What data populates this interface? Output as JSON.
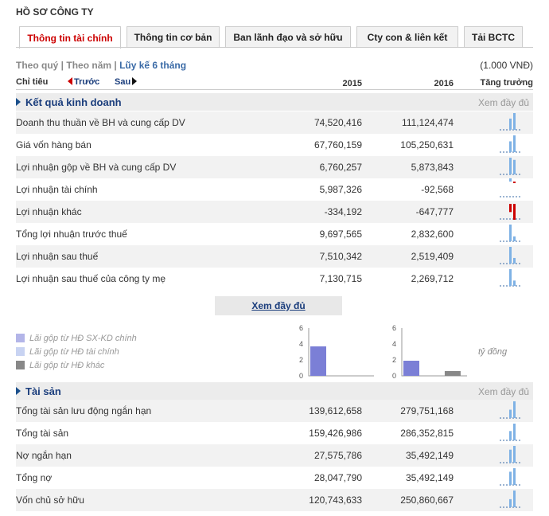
{
  "title": "HỒ SƠ CÔNG TY",
  "tabs": [
    "Thông tin tài chính",
    "Thông tin cơ bản",
    "Ban lãnh đạo và sở hữu",
    "Cty con & liên kết",
    "Tải BCTC"
  ],
  "period": {
    "quarter": "Theo quý",
    "sep1": " | ",
    "year": "Theo năm",
    "sep2": " | ",
    "cumulative": "Lũy kế 6 tháng"
  },
  "unit": "(1.000 VNĐ)",
  "columns": {
    "label": "Chỉ tiêu",
    "prev": "Trước",
    "next": "Sau",
    "year1": "2015",
    "year2": "2016",
    "growth": "Tăng trưởng"
  },
  "colors": {
    "accent_red": "#cc0000",
    "link_blue": "#1a3d7c",
    "bar_blue": "#7fb2e5",
    "bar_red": "#cc0000"
  },
  "section1": {
    "title": "Kết quả kinh doanh",
    "more": "Xem đầy đủ",
    "rows": [
      {
        "name": "Doanh thu thuần về BH và cung cấp DV",
        "v2015": "74,520,416",
        "v2016": "111,124,474"
      },
      {
        "name": "Giá vốn hàng bán",
        "v2015": "67,760,159",
        "v2016": "105,250,631"
      },
      {
        "name": "Lợi nhuận gộp về BH và cung cấp DV",
        "v2015": "6,760,257",
        "v2016": "5,873,843"
      },
      {
        "name": "Lợi nhuận tài chính",
        "v2015": "5,987,326",
        "v2016": "-92,568"
      },
      {
        "name": "Lợi nhuận khác",
        "v2015": "-334,192",
        "v2016": "-647,777"
      },
      {
        "name": "Tổng lợi nhuận trước thuế",
        "v2015": "9,697,565",
        "v2016": "2,832,600"
      },
      {
        "name": "Lợi nhuận sau thuế",
        "v2015": "7,510,342",
        "v2016": "2,519,409"
      },
      {
        "name": "Lợi nhuận sau thuế của công ty mẹ",
        "v2015": "7,130,715",
        "v2016": "2,269,712"
      }
    ]
  },
  "more_button": "Xem đầy đủ",
  "legend": [
    {
      "label": "Lãi gộp từ HĐ SX-KD chính",
      "color": "#7b7fd6"
    },
    {
      "label": "Lãi gộp từ HĐ tài chính",
      "color": "#b6c6ef"
    },
    {
      "label": "Lãi gộp từ HĐ khác",
      "color": "#888888"
    }
  ],
  "chart_data": [
    {
      "type": "bar",
      "categories": [
        "Lãi gộp từ HĐ SX-KD chính",
        "Lãi gộp từ HĐ tài chính",
        "Lãi gộp từ HĐ khác"
      ],
      "values": [
        3.7,
        0,
        0
      ],
      "ylim": [
        0,
        6
      ],
      "yticks": [
        "0",
        "2",
        "4",
        "6"
      ],
      "ylabel": "tỷ đồng"
    },
    {
      "type": "bar",
      "categories": [
        "Lãi gộp từ HĐ SX-KD chính",
        "Lãi gộp từ HĐ tài chính",
        "Lãi gộp từ HĐ khác"
      ],
      "values": [
        1.9,
        0,
        0.6
      ],
      "ylim": [
        0,
        6
      ],
      "yticks": [
        "0",
        "2",
        "4",
        "6"
      ],
      "ylabel": "tỷ đồng"
    }
  ],
  "chart_unit": "tỷ đồng",
  "section2": {
    "title": "Tài sản",
    "more": "Xem đầy đủ",
    "rows": [
      {
        "name": "Tổng tài sản lưu động ngắn hạn",
        "v2015": "139,612,658",
        "v2016": "279,751,168"
      },
      {
        "name": "Tổng tài sản",
        "v2015": "159,426,986",
        "v2016": "286,352,815"
      },
      {
        "name": "Nợ ngắn hạn",
        "v2015": "27,575,786",
        "v2016": "35,492,149"
      },
      {
        "name": "Tổng nợ",
        "v2015": "28,047,790",
        "v2016": "35,492,149"
      },
      {
        "name": "Vốn chủ sở hữu",
        "v2015": "120,743,633",
        "v2016": "250,860,667"
      }
    ]
  }
}
